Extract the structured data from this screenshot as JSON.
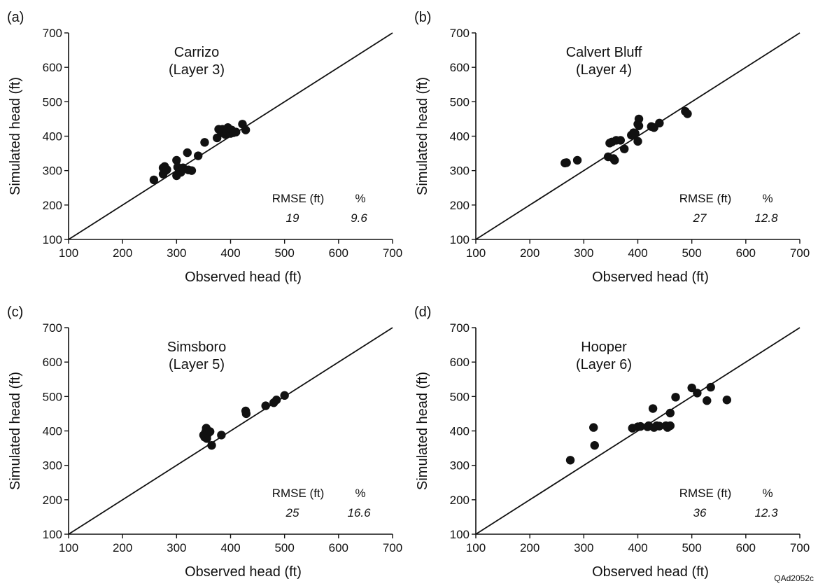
{
  "footer_code": "QAd2052c",
  "chart_data": [
    {
      "type": "scatter",
      "panel_label": "(a)",
      "title": "Carrizo",
      "subtitle": "(Layer 3)",
      "xlabel": "Observed head (ft)",
      "ylabel": "Simulated head (ft)",
      "xlim": [
        100,
        700
      ],
      "ylim": [
        100,
        700
      ],
      "xticks": [
        "100",
        "200",
        "300",
        "400",
        "500",
        "600",
        "700"
      ],
      "yticks": [
        "100",
        "200",
        "300",
        "400",
        "500",
        "600",
        "700"
      ],
      "reference_line": "1:1",
      "grid": false,
      "stats": {
        "rmse_label": "RMSE (ft)",
        "pct_label": "%",
        "rmse": "19",
        "pct": "9.6"
      },
      "points": [
        [
          258,
          273
        ],
        [
          275,
          290
        ],
        [
          275,
          308
        ],
        [
          278,
          312
        ],
        [
          280,
          300
        ],
        [
          282,
          303
        ],
        [
          300,
          330
        ],
        [
          300,
          285
        ],
        [
          302,
          310
        ],
        [
          305,
          300
        ],
        [
          308,
          295
        ],
        [
          312,
          308
        ],
        [
          320,
          352
        ],
        [
          322,
          302
        ],
        [
          328,
          300
        ],
        [
          340,
          343
        ],
        [
          352,
          382
        ],
        [
          375,
          395
        ],
        [
          378,
          420
        ],
        [
          383,
          410
        ],
        [
          385,
          420
        ],
        [
          390,
          405
        ],
        [
          393,
          412
        ],
        [
          395,
          425
        ],
        [
          398,
          415
        ],
        [
          400,
          408
        ],
        [
          402,
          418
        ],
        [
          405,
          410
        ],
        [
          410,
          412
        ],
        [
          422,
          435
        ],
        [
          428,
          418
        ]
      ]
    },
    {
      "type": "scatter",
      "panel_label": "(b)",
      "title": "Calvert Bluff",
      "subtitle": "(Layer 4)",
      "xlabel": "Observed head (ft)",
      "ylabel": "Simulated head (ft)",
      "xlim": [
        100,
        700
      ],
      "ylim": [
        100,
        700
      ],
      "xticks": [
        "100",
        "200",
        "300",
        "400",
        "500",
        "600",
        "700"
      ],
      "yticks": [
        "100",
        "200",
        "300",
        "400",
        "500",
        "600",
        "700"
      ],
      "reference_line": "1:1",
      "grid": false,
      "stats": {
        "rmse_label": "RMSE (ft)",
        "pct_label": "%",
        "rmse": "27",
        "pct": "12.8"
      },
      "points": [
        [
          265,
          322
        ],
        [
          268,
          323
        ],
        [
          288,
          330
        ],
        [
          345,
          340
        ],
        [
          348,
          380
        ],
        [
          352,
          383
        ],
        [
          355,
          335
        ],
        [
          357,
          330
        ],
        [
          360,
          388
        ],
        [
          368,
          388
        ],
        [
          375,
          363
        ],
        [
          388,
          403
        ],
        [
          392,
          410
        ],
        [
          395,
          408
        ],
        [
          400,
          385
        ],
        [
          400,
          435
        ],
        [
          402,
          450
        ],
        [
          402,
          430
        ],
        [
          425,
          428
        ],
        [
          430,
          425
        ],
        [
          440,
          438
        ],
        [
          488,
          472
        ],
        [
          492,
          465
        ]
      ]
    },
    {
      "type": "scatter",
      "panel_label": "(c)",
      "title": "Simsboro",
      "subtitle": "(Layer 5)",
      "xlabel": "Observed head (ft)",
      "ylabel": "Simulated head (ft)",
      "xlim": [
        100,
        700
      ],
      "ylim": [
        100,
        700
      ],
      "xticks": [
        "100",
        "200",
        "300",
        "400",
        "500",
        "600",
        "700"
      ],
      "yticks": [
        "100",
        "200",
        "300",
        "400",
        "500",
        "600",
        "700"
      ],
      "reference_line": "1:1",
      "grid": false,
      "stats": {
        "rmse_label": "RMSE (ft)",
        "pct_label": "%",
        "rmse": "25",
        "pct": "16.6"
      },
      "points": [
        [
          350,
          388
        ],
        [
          352,
          382
        ],
        [
          354,
          398
        ],
        [
          355,
          408
        ],
        [
          356,
          378
        ],
        [
          358,
          392
        ],
        [
          362,
          398
        ],
        [
          365,
          358
        ],
        [
          383,
          388
        ],
        [
          428,
          458
        ],
        [
          429,
          450
        ],
        [
          465,
          473
        ],
        [
          480,
          482
        ],
        [
          485,
          490
        ],
        [
          500,
          503
        ]
      ]
    },
    {
      "type": "scatter",
      "panel_label": "(d)",
      "title": "Hooper",
      "subtitle": "(Layer 6)",
      "xlabel": "Observed head (ft)",
      "ylabel": "Simulated head (ft)",
      "xlim": [
        100,
        700
      ],
      "ylim": [
        100,
        700
      ],
      "xticks": [
        "100",
        "200",
        "300",
        "400",
        "500",
        "600",
        "700"
      ],
      "yticks": [
        "100",
        "200",
        "300",
        "400",
        "500",
        "600",
        "700"
      ],
      "reference_line": "1:1",
      "grid": false,
      "stats": {
        "rmse_label": "RMSE (ft)",
        "pct_label": "%",
        "rmse": "36",
        "pct": "12.3"
      },
      "points": [
        [
          275,
          315
        ],
        [
          318,
          410
        ],
        [
          320,
          358
        ],
        [
          390,
          408
        ],
        [
          400,
          412
        ],
        [
          405,
          413
        ],
        [
          418,
          412
        ],
        [
          420,
          415
        ],
        [
          428,
          465
        ],
        [
          430,
          410
        ],
        [
          435,
          415
        ],
        [
          440,
          414
        ],
        [
          452,
          415
        ],
        [
          455,
          410
        ],
        [
          460,
          415
        ],
        [
          460,
          452
        ],
        [
          470,
          498
        ],
        [
          500,
          525
        ],
        [
          510,
          510
        ],
        [
          528,
          488
        ],
        [
          535,
          527
        ],
        [
          565,
          490
        ]
      ]
    }
  ]
}
